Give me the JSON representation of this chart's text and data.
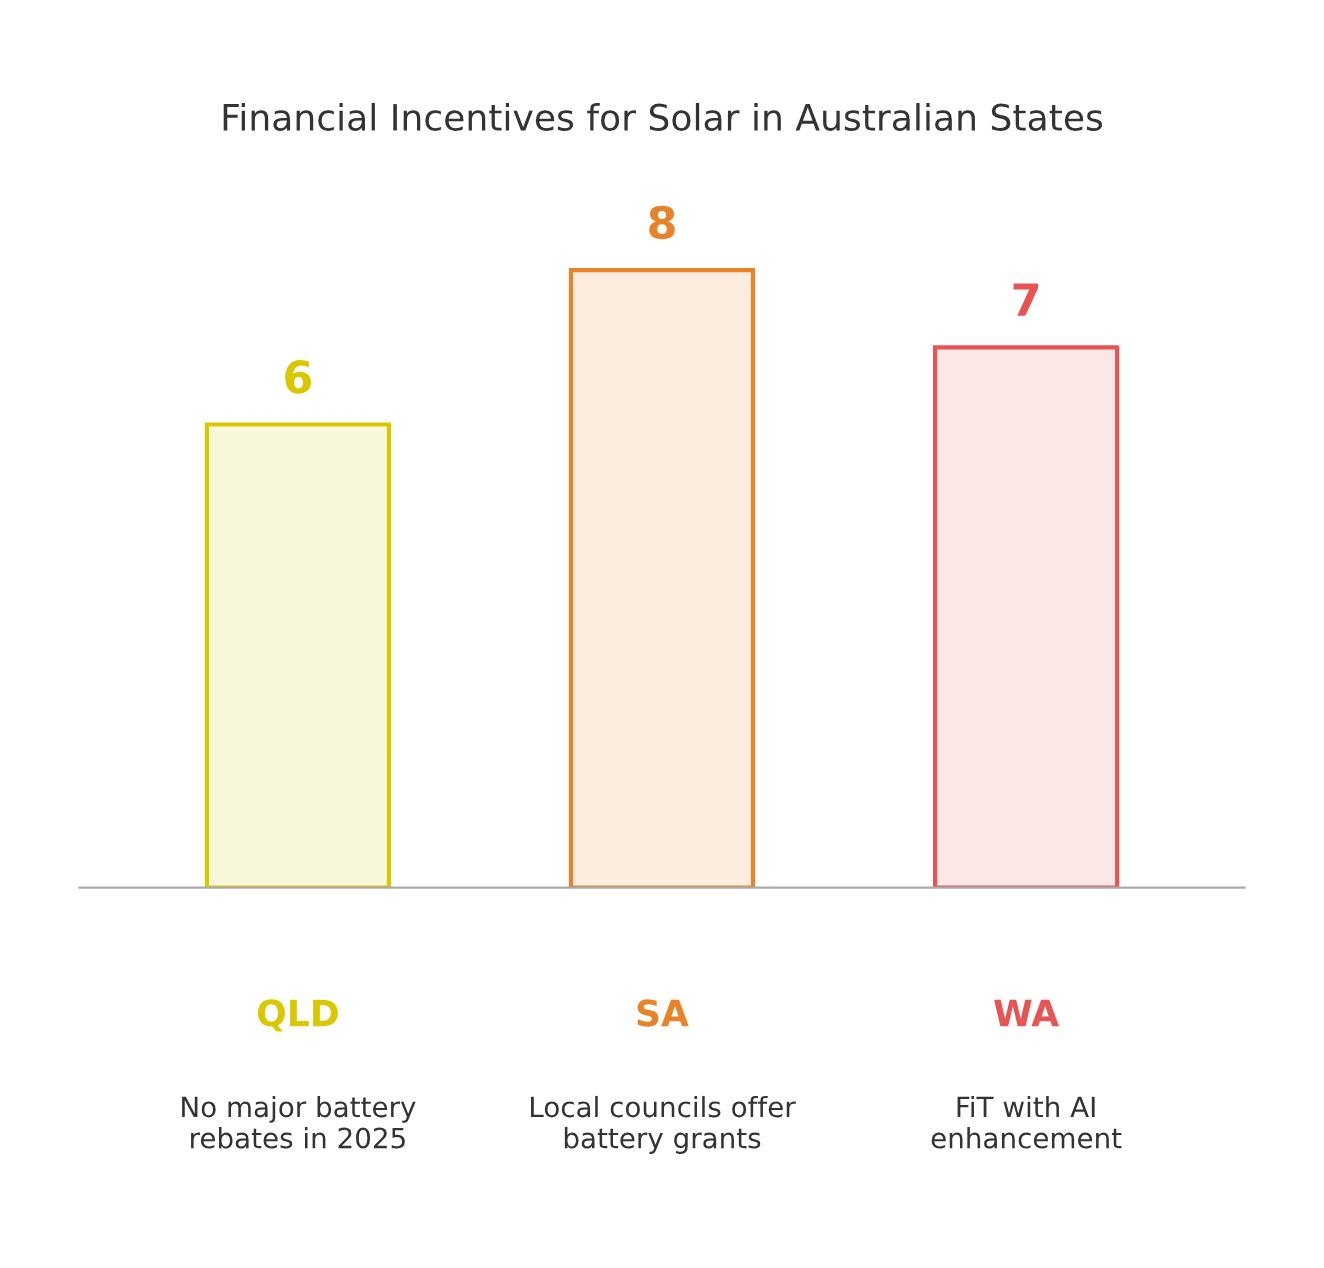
{
  "chart_data": {
    "type": "bar",
    "title": "Financial Incentives for Solar in Australian States",
    "categories": [
      "QLD",
      "SA",
      "WA"
    ],
    "values": [
      6,
      8,
      7
    ],
    "colors": [
      "#d9c800",
      "#e8832a",
      "#e85454"
    ],
    "data_labels": true,
    "grid": false,
    "annotations": [
      "No major battery\nrebates in 2025",
      "Local councils offer\nbattery grants",
      "FiT with AI\nenhancement"
    ]
  }
}
